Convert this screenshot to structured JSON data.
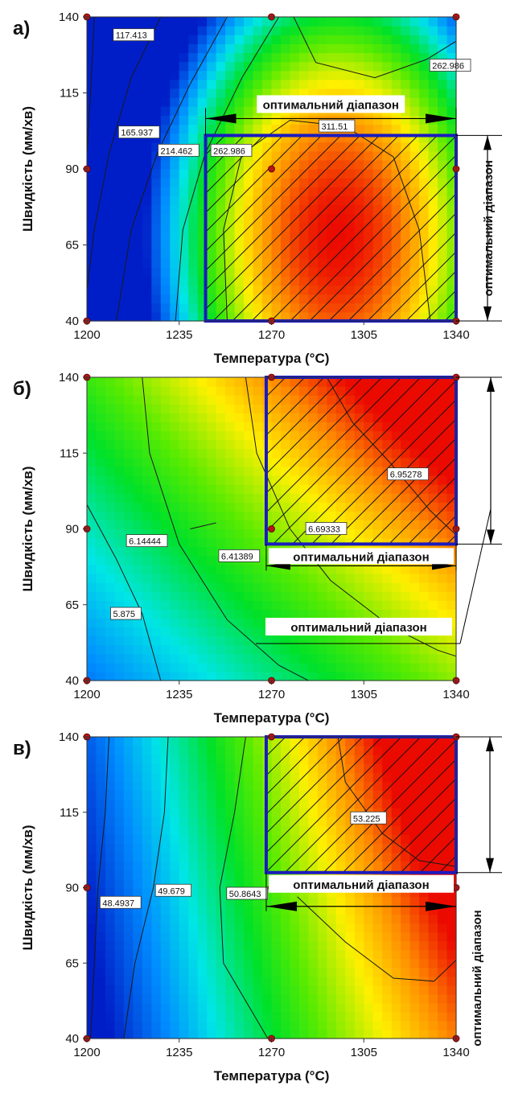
{
  "chart_data": [
    {
      "type": "heatmap",
      "panel_label": "а)",
      "xlabel": "Температура (°C)",
      "ylabel": "Швидкість (мм/хв)",
      "xlim": [
        1200,
        1340
      ],
      "ylim": [
        40,
        140
      ],
      "x_ticks": [
        "1200",
        "1235",
        "1270",
        "1305",
        "1340"
      ],
      "y_ticks": [
        "40",
        "65",
        "90",
        "115",
        "140"
      ],
      "contour_labels": [
        {
          "text": "117.413",
          "x": 1210,
          "y": 134
        },
        {
          "text": "165.937",
          "x": 1212,
          "y": 102
        },
        {
          "text": "214.462",
          "x": 1227,
          "y": 96
        },
        {
          "text": "262.986",
          "x": 1247,
          "y": 96
        },
        {
          "text": "262.986",
          "x": 1330,
          "y": 124
        },
        {
          "text": "311.51",
          "x": 1288,
          "y": 104
        }
      ],
      "optimal_region": {
        "x": [
          1245,
          1340
        ],
        "y": [
          40,
          101
        ]
      },
      "design_points": [
        [
          1200,
          140
        ],
        [
          1270,
          140
        ],
        [
          1340,
          140
        ],
        [
          1200,
          90
        ],
        [
          1270,
          90
        ],
        [
          1340,
          90
        ],
        [
          1200,
          40
        ],
        [
          1270,
          40
        ],
        [
          1340,
          40
        ]
      ],
      "annotations": [
        {
          "text": "оптимальний діапазон",
          "orientation": "horizontal"
        },
        {
          "text": "оптимальний діапазон",
          "orientation": "vertical"
        }
      ]
    },
    {
      "type": "heatmap",
      "panel_label": "б)",
      "xlabel": "Температура (°C)",
      "ylabel": "Швидкість (мм/хв)",
      "xlim": [
        1200,
        1340
      ],
      "ylim": [
        40,
        140
      ],
      "x_ticks": [
        "1200",
        "1235",
        "1270",
        "1305",
        "1340"
      ],
      "y_ticks": [
        "40",
        "65",
        "90",
        "115",
        "140"
      ],
      "contour_labels": [
        {
          "text": "5.875",
          "x": 1209,
          "y": 62
        },
        {
          "text": "6.14444",
          "x": 1215,
          "y": 86
        },
        {
          "text": "6.41389",
          "x": 1250,
          "y": 81
        },
        {
          "text": "6.69333",
          "x": 1283,
          "y": 90
        },
        {
          "text": "6.95278",
          "x": 1314,
          "y": 108
        }
      ],
      "optimal_region": {
        "x": [
          1268,
          1340
        ],
        "y": [
          85,
          140
        ]
      },
      "design_points": [
        [
          1200,
          140
        ],
        [
          1270,
          140
        ],
        [
          1340,
          140
        ],
        [
          1200,
          90
        ],
        [
          1270,
          90
        ],
        [
          1340,
          90
        ],
        [
          1200,
          40
        ],
        [
          1270,
          40
        ],
        [
          1340,
          40
        ]
      ],
      "annotations": [
        {
          "text": "оптимальний діапазон",
          "orientation": "horizontal"
        },
        {
          "text": "оптимальний діапазон",
          "orientation": "horizontal"
        }
      ]
    },
    {
      "type": "heatmap",
      "panel_label": "в)",
      "xlabel": "Температура (°C)",
      "ylabel": "Швидкість (мм/хв)",
      "xlim": [
        1200,
        1340
      ],
      "ylim": [
        40,
        140
      ],
      "x_ticks": [
        "1200",
        "1235",
        "1270",
        "1305",
        "1340"
      ],
      "y_ticks": [
        "40",
        "65",
        "90",
        "115",
        "140"
      ],
      "contour_labels": [
        {
          "text": "48.4937",
          "x": 1205,
          "y": 85
        },
        {
          "text": "49.679",
          "x": 1226,
          "y": 89
        },
        {
          "text": "50.8643",
          "x": 1253,
          "y": 88
        },
        {
          "text": "53.225",
          "x": 1300,
          "y": 113
        }
      ],
      "optimal_region": {
        "x": [
          1268,
          1340
        ],
        "y": [
          95,
          140
        ]
      },
      "design_points": [
        [
          1200,
          140
        ],
        [
          1270,
          140
        ],
        [
          1340,
          140
        ],
        [
          1200,
          90
        ],
        [
          1270,
          90
        ],
        [
          1340,
          90
        ],
        [
          1200,
          40
        ],
        [
          1270,
          40
        ],
        [
          1340,
          40
        ]
      ],
      "annotations": [
        {
          "text": "оптимальний діапазон",
          "orientation": "horizontal"
        },
        {
          "text": "оптимальний діапазон",
          "orientation": "vertical"
        }
      ]
    }
  ]
}
